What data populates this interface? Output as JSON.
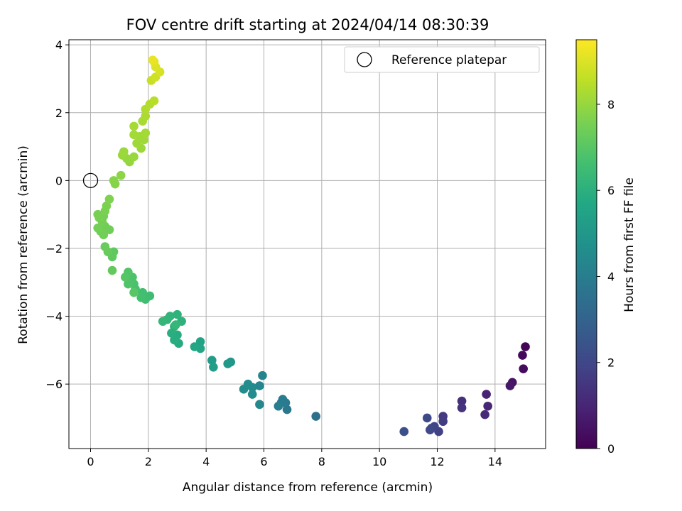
{
  "chart_data": {
    "type": "scatter",
    "title": "FOV centre drift starting at 2024/04/14 08:30:39",
    "xlabel": "Angular distance from reference (arcmin)",
    "ylabel": "Rotation from reference (arcmin)",
    "xlim": [
      -0.75,
      15.75
    ],
    "ylim": [
      -7.9,
      4.15
    ],
    "xticks": [
      0,
      2,
      4,
      6,
      8,
      10,
      12,
      14
    ],
    "yticks": [
      -6,
      -4,
      -2,
      0,
      2,
      4
    ],
    "xtick_labels": [
      "0",
      "2",
      "4",
      "6",
      "8",
      "10",
      "12",
      "14"
    ],
    "ytick_labels": [
      "−6",
      "−4",
      "−2",
      "0",
      "2",
      "4"
    ],
    "grid": true,
    "legend": {
      "placement": "upper-right",
      "entries": [
        "Reference platepar"
      ]
    },
    "reference_point": {
      "x": 0,
      "y": 0
    },
    "colorbar": {
      "label": "Hours from first FF file",
      "range": [
        0,
        9.5
      ],
      "ticks": [
        0,
        2,
        4,
        6,
        8
      ],
      "tick_labels": [
        "0",
        "2",
        "4",
        "6",
        "8"
      ],
      "colormap": "viridis"
    },
    "points": [
      {
        "x": 15.05,
        "y": -4.9,
        "c": 0.1
      },
      {
        "x": 14.95,
        "y": -5.15,
        "c": 0.2
      },
      {
        "x": 14.98,
        "y": -5.55,
        "c": 0.3
      },
      {
        "x": 14.6,
        "y": -5.95,
        "c": 0.5
      },
      {
        "x": 14.52,
        "y": -6.05,
        "c": 0.6
      },
      {
        "x": 13.7,
        "y": -6.3,
        "c": 0.9
      },
      {
        "x": 13.75,
        "y": -6.65,
        "c": 1.0
      },
      {
        "x": 13.65,
        "y": -6.9,
        "c": 1.1
      },
      {
        "x": 12.85,
        "y": -6.5,
        "c": 1.3
      },
      {
        "x": 12.85,
        "y": -6.7,
        "c": 1.4
      },
      {
        "x": 12.2,
        "y": -6.95,
        "c": 1.6
      },
      {
        "x": 12.2,
        "y": -7.1,
        "c": 1.7
      },
      {
        "x": 12.05,
        "y": -7.4,
        "c": 1.8
      },
      {
        "x": 11.9,
        "y": -7.25,
        "c": 1.9
      },
      {
        "x": 11.8,
        "y": -7.3,
        "c": 2.0
      },
      {
        "x": 11.75,
        "y": -7.35,
        "c": 2.05
      },
      {
        "x": 11.65,
        "y": -7.0,
        "c": 2.1
      },
      {
        "x": 10.85,
        "y": -7.4,
        "c": 2.3
      },
      {
        "x": 7.8,
        "y": -6.95,
        "c": 3.5
      },
      {
        "x": 6.8,
        "y": -6.75,
        "c": 3.8
      },
      {
        "x": 6.75,
        "y": -6.55,
        "c": 3.85
      },
      {
        "x": 6.65,
        "y": -6.45,
        "c": 3.9
      },
      {
        "x": 6.6,
        "y": -6.55,
        "c": 3.95
      },
      {
        "x": 6.5,
        "y": -6.65,
        "c": 4.0
      },
      {
        "x": 5.95,
        "y": -5.75,
        "c": 4.3
      },
      {
        "x": 5.85,
        "y": -6.05,
        "c": 4.35
      },
      {
        "x": 5.85,
        "y": -6.6,
        "c": 4.4
      },
      {
        "x": 5.6,
        "y": -6.1,
        "c": 4.5
      },
      {
        "x": 5.6,
        "y": -6.3,
        "c": 4.55
      },
      {
        "x": 5.45,
        "y": -6.0,
        "c": 4.6
      },
      {
        "x": 5.3,
        "y": -6.15,
        "c": 4.65
      },
      {
        "x": 4.85,
        "y": -5.35,
        "c": 5.0
      },
      {
        "x": 4.75,
        "y": -5.4,
        "c": 5.05
      },
      {
        "x": 4.2,
        "y": -5.3,
        "c": 5.2
      },
      {
        "x": 4.25,
        "y": -5.5,
        "c": 5.25
      },
      {
        "x": 3.8,
        "y": -4.75,
        "c": 5.5
      },
      {
        "x": 3.8,
        "y": -4.95,
        "c": 5.55
      },
      {
        "x": 3.6,
        "y": -4.9,
        "c": 5.6
      },
      {
        "x": 3.05,
        "y": -4.8,
        "c": 5.8
      },
      {
        "x": 3.0,
        "y": -4.55,
        "c": 5.85
      },
      {
        "x": 2.9,
        "y": -4.7,
        "c": 5.9
      },
      {
        "x": 2.8,
        "y": -4.5,
        "c": 5.95
      },
      {
        "x": 2.9,
        "y": -4.3,
        "c": 6.0
      },
      {
        "x": 3.15,
        "y": -4.15,
        "c": 6.05
      },
      {
        "x": 3.0,
        "y": -3.95,
        "c": 6.1
      },
      {
        "x": 2.75,
        "y": -4.0,
        "c": 6.15
      },
      {
        "x": 2.65,
        "y": -4.1,
        "c": 6.2
      },
      {
        "x": 2.5,
        "y": -4.15,
        "c": 6.25
      },
      {
        "x": 2.95,
        "y": -4.25,
        "c": 6.3
      },
      {
        "x": 2.05,
        "y": -3.4,
        "c": 6.5
      },
      {
        "x": 1.9,
        "y": -3.5,
        "c": 6.55
      },
      {
        "x": 1.8,
        "y": -3.3,
        "c": 6.6
      },
      {
        "x": 1.75,
        "y": -3.45,
        "c": 6.65
      },
      {
        "x": 1.55,
        "y": -3.2,
        "c": 6.7
      },
      {
        "x": 1.5,
        "y": -3.05,
        "c": 6.75
      },
      {
        "x": 1.45,
        "y": -2.85,
        "c": 6.8
      },
      {
        "x": 1.3,
        "y": -3.05,
        "c": 6.85
      },
      {
        "x": 1.3,
        "y": -2.7,
        "c": 6.9
      },
      {
        "x": 1.2,
        "y": -2.85,
        "c": 6.95
      },
      {
        "x": 1.5,
        "y": -3.3,
        "c": 7.0
      },
      {
        "x": 0.8,
        "y": -2.1,
        "c": 7.1
      },
      {
        "x": 0.75,
        "y": -2.25,
        "c": 7.15
      },
      {
        "x": 0.75,
        "y": -2.65,
        "c": 7.2
      },
      {
        "x": 0.6,
        "y": -2.1,
        "c": 7.25
      },
      {
        "x": 0.5,
        "y": -1.95,
        "c": 7.3
      },
      {
        "x": 0.65,
        "y": -1.45,
        "c": 7.4
      },
      {
        "x": 0.5,
        "y": -1.35,
        "c": 7.42
      },
      {
        "x": 0.45,
        "y": -1.6,
        "c": 7.44
      },
      {
        "x": 0.35,
        "y": -1.5,
        "c": 7.46
      },
      {
        "x": 0.25,
        "y": -1.4,
        "c": 7.48
      },
      {
        "x": 0.4,
        "y": -1.2,
        "c": 7.5
      },
      {
        "x": 0.45,
        "y": -1.05,
        "c": 7.52
      },
      {
        "x": 0.3,
        "y": -1.1,
        "c": 7.54
      },
      {
        "x": 0.25,
        "y": -1.0,
        "c": 7.56
      },
      {
        "x": 0.5,
        "y": -0.9,
        "c": 7.58
      },
      {
        "x": 0.55,
        "y": -0.75,
        "c": 7.6
      },
      {
        "x": 0.65,
        "y": -0.55,
        "c": 7.65
      },
      {
        "x": 0.85,
        "y": -0.1,
        "c": 7.75
      },
      {
        "x": 0.8,
        "y": 0.0,
        "c": 7.8
      },
      {
        "x": 1.05,
        "y": 0.15,
        "c": 7.85
      },
      {
        "x": 1.35,
        "y": 0.55,
        "c": 7.95
      },
      {
        "x": 1.25,
        "y": 0.65,
        "c": 8.0
      },
      {
        "x": 1.5,
        "y": 0.7,
        "c": 8.02
      },
      {
        "x": 1.1,
        "y": 0.75,
        "c": 8.04
      },
      {
        "x": 1.15,
        "y": 0.85,
        "c": 8.06
      },
      {
        "x": 1.75,
        "y": 0.95,
        "c": 8.1
      },
      {
        "x": 1.6,
        "y": 1.1,
        "c": 8.12
      },
      {
        "x": 1.85,
        "y": 1.2,
        "c": 8.14
      },
      {
        "x": 1.7,
        "y": 1.3,
        "c": 8.16
      },
      {
        "x": 1.5,
        "y": 1.35,
        "c": 8.18
      },
      {
        "x": 1.9,
        "y": 1.4,
        "c": 8.2
      },
      {
        "x": 1.5,
        "y": 1.6,
        "c": 8.22
      },
      {
        "x": 1.8,
        "y": 1.75,
        "c": 8.24
      },
      {
        "x": 1.9,
        "y": 1.9,
        "c": 8.3
      },
      {
        "x": 1.9,
        "y": 2.1,
        "c": 8.35
      },
      {
        "x": 2.05,
        "y": 2.25,
        "c": 8.4
      },
      {
        "x": 2.2,
        "y": 2.35,
        "c": 8.5
      },
      {
        "x": 2.1,
        "y": 2.95,
        "c": 8.7
      },
      {
        "x": 2.25,
        "y": 3.05,
        "c": 8.8
      },
      {
        "x": 2.4,
        "y": 3.2,
        "c": 8.9
      },
      {
        "x": 2.25,
        "y": 3.35,
        "c": 9.0
      },
      {
        "x": 2.2,
        "y": 3.5,
        "c": 9.1
      },
      {
        "x": 2.15,
        "y": 3.55,
        "c": 9.2
      }
    ]
  }
}
